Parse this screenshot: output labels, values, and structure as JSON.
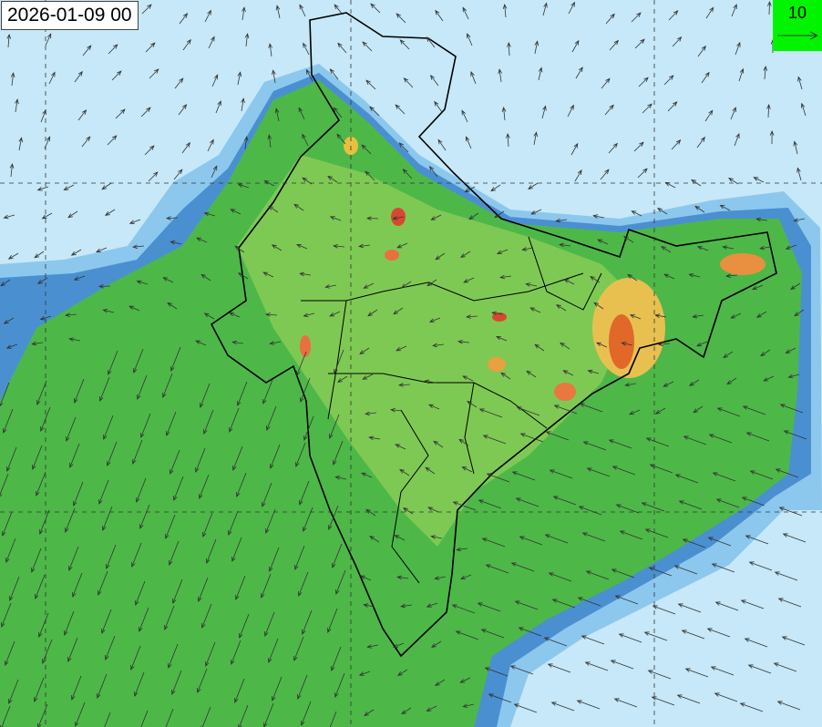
{
  "map": {
    "valid_time": "2026-01-09 00",
    "wind_legend": {
      "value": "10",
      "background_color": "#00f400"
    },
    "colors": {
      "ocean_light": "#c6e8f8",
      "low_blue": "#6fb2e4",
      "mid_blue": "#3d88c8",
      "green": "#4db848",
      "light_green": "#93d05a",
      "yellow": "#e8e060",
      "orange": "#f09030",
      "red": "#d03020",
      "border": "#000000"
    }
  }
}
